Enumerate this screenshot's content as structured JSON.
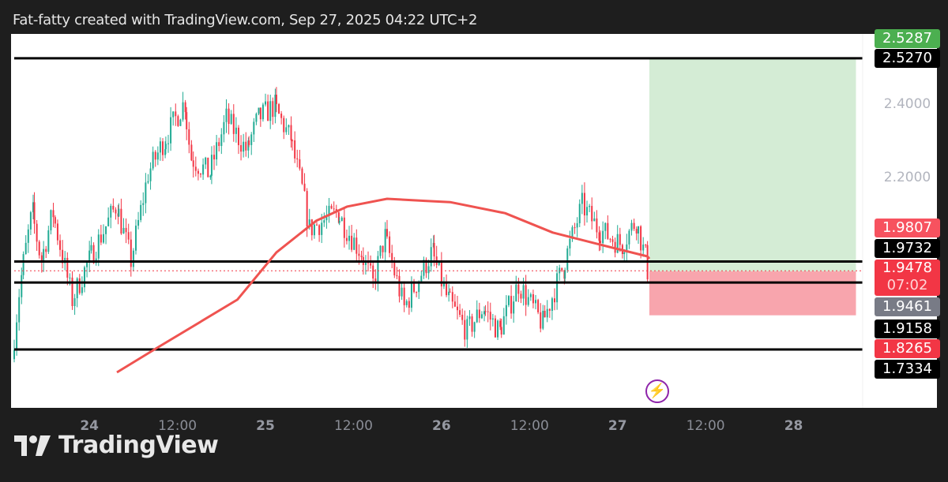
{
  "header": {
    "text": "Fat-fatty created with TradingView.com, Sep 27, 2025 04:22 UTC+2"
  },
  "logo": {
    "text": "TradingView"
  },
  "chart_data": {
    "type": "candlestick",
    "title": "",
    "xlim": [
      "2025-09-23T13:45",
      "2025-09-28T09:25"
    ],
    "ylim": [
      1.5742,
      2.5935
    ],
    "grid": false,
    "colors": {
      "up": "#22ab94",
      "down": "#f23645",
      "ema": "#ef5350",
      "levels": "#000000",
      "target_zone": "#d4ecd5",
      "stop_zone": "#f8a5ad"
    },
    "price_path": [
      [
        "2025-09-23T13:45",
        1.707
      ],
      [
        "2025-09-23T15:00",
        1.933
      ],
      [
        "2025-09-23T16:30",
        2.105
      ],
      [
        "2025-09-23T17:45",
        1.976
      ],
      [
        "2025-09-23T19:20",
        2.105
      ],
      [
        "2025-09-23T22:00",
        1.869
      ],
      [
        "2025-09-24T00:15",
        1.976
      ],
      [
        "2025-09-24T04:00",
        2.127
      ],
      [
        "2025-09-24T06:00",
        1.976
      ],
      [
        "2025-09-24T08:20",
        2.213
      ],
      [
        "2025-09-24T10:25",
        2.3
      ],
      [
        "2025-09-24T13:15",
        2.406
      ],
      [
        "2025-09-24T14:10",
        2.256
      ],
      [
        "2025-09-24T16:40",
        2.213
      ],
      [
        "2025-09-24T19:00",
        2.363
      ],
      [
        "2025-09-24T21:45",
        2.277
      ],
      [
        "2025-09-24T23:20",
        2.363
      ],
      [
        "2025-09-25T01:30",
        2.396
      ],
      [
        "2025-09-25T03:40",
        2.31
      ],
      [
        "2025-09-25T05:20",
        2.17
      ],
      [
        "2025-09-25T06:20",
        2.062
      ],
      [
        "2025-09-25T10:05",
        2.105
      ],
      [
        "2025-09-25T13:20",
        1.998
      ],
      [
        "2025-09-25T15:00",
        1.912
      ],
      [
        "2025-09-25T16:35",
        2.04
      ],
      [
        "2025-09-25T19:15",
        1.847
      ],
      [
        "2025-09-25T23:00",
        1.998
      ],
      [
        "2025-09-26T01:10",
        1.869
      ],
      [
        "2025-09-26T03:50",
        1.783
      ],
      [
        "2025-09-26T06:00",
        1.847
      ],
      [
        "2025-09-26T08:10",
        1.783
      ],
      [
        "2025-09-26T10:50",
        1.912
      ],
      [
        "2025-09-26T14:05",
        1.804
      ],
      [
        "2025-09-26T16:50",
        1.955
      ],
      [
        "2025-09-26T19:30",
        2.127
      ],
      [
        "2025-09-26T21:40",
        2.062
      ],
      [
        "2025-09-27T00:55",
        2.019
      ],
      [
        "2025-09-27T02:50",
        2.084
      ],
      [
        "2025-09-27T04:05",
        1.987
      ],
      [
        "2025-09-27T04:20",
        1.9478
      ]
    ],
    "ema": [
      [
        "2025-09-24T03:45",
        1.671
      ],
      [
        "2025-09-24T09:25",
        1.74
      ],
      [
        "2025-09-24T20:10",
        1.869
      ],
      [
        "2025-09-25T01:30",
        1.998
      ],
      [
        "2025-09-25T06:55",
        2.084
      ],
      [
        "2025-09-25T11:10",
        2.123
      ],
      [
        "2025-09-25T16:35",
        2.144
      ],
      [
        "2025-09-25T22:00",
        2.138
      ],
      [
        "2025-09-26T01:10",
        2.135
      ],
      [
        "2025-09-26T08:40",
        2.105
      ],
      [
        "2025-09-26T15:10",
        2.052
      ],
      [
        "2025-09-26T21:40",
        2.019
      ],
      [
        "2025-09-27T04:05",
        1.987
      ],
      [
        "2025-09-27T04:20",
        1.9807
      ]
    ],
    "horizontal_levels": [
      2.527,
      1.9732,
      1.9158,
      1.7334
    ],
    "last_price_line": 1.9478,
    "position": {
      "start": "2025-09-27T04:20",
      "end": "2025-09-28T08:30",
      "entry": 1.9461,
      "target": 2.5287,
      "stop": 1.8265
    },
    "y_ticks": [
      "2.4000",
      "2.2000"
    ],
    "x_ticks": [
      {
        "t": "2025-09-24T00:00",
        "label": "24",
        "day": true
      },
      {
        "t": "2025-09-24T12:00",
        "label": "12:00",
        "day": false
      },
      {
        "t": "2025-09-25T00:00",
        "label": "25",
        "day": true
      },
      {
        "t": "2025-09-25T12:00",
        "label": "12:00",
        "day": false
      },
      {
        "t": "2025-09-26T00:00",
        "label": "26",
        "day": true
      },
      {
        "t": "2025-09-26T12:00",
        "label": "12:00",
        "day": false
      },
      {
        "t": "2025-09-27T00:00",
        "label": "27",
        "day": true
      },
      {
        "t": "2025-09-27T12:00",
        "label": "12:00",
        "day": false
      },
      {
        "t": "2025-09-28T00:00",
        "label": "28",
        "day": true
      }
    ],
    "price_labels": [
      {
        "text": "2.5287",
        "color": "#4caf50"
      },
      {
        "text": "2.5270",
        "color": "#000000"
      },
      {
        "text": "1.9807",
        "color": "#f7525f"
      },
      {
        "text": "1.9732",
        "color": "#000000"
      },
      {
        "text": "1.9478",
        "sub": "07:02",
        "color": "#f23645"
      },
      {
        "text": "1.9461",
        "color": "#787b86"
      },
      {
        "text": "1.9158",
        "color": "#000000"
      },
      {
        "text": "1.8265",
        "color": "#f23645"
      },
      {
        "text": "1.7334",
        "color": "#000000"
      }
    ]
  }
}
